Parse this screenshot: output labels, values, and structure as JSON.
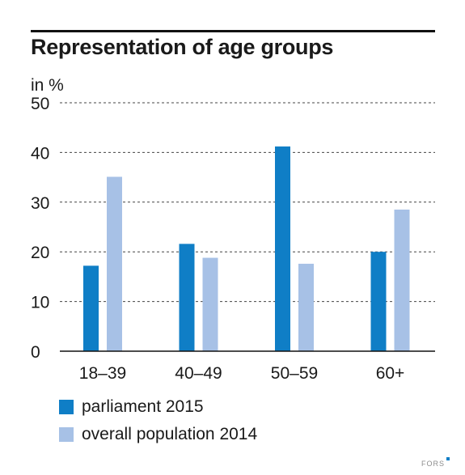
{
  "title": "Representation of age groups",
  "footer": {
    "brand": "FORS"
  },
  "chart_data": {
    "type": "bar",
    "title": "Representation of age groups",
    "ylabel": "in %",
    "xlabel": "",
    "ylim": [
      0,
      50
    ],
    "yticks": [
      0,
      10,
      20,
      30,
      40,
      50
    ],
    "grid": "dashed horizontal",
    "legend_position": "bottom",
    "categories": [
      "18–39",
      "40–49",
      "50–59",
      "60+"
    ],
    "series": [
      {
        "name": "parliament 2015",
        "color": "#0f7ec6",
        "values": [
          17.2,
          21.6,
          41.2,
          20.0
        ]
      },
      {
        "name": "overall population 2014",
        "color": "#a7c1e6",
        "values": [
          35.1,
          18.8,
          17.6,
          28.5
        ]
      }
    ]
  }
}
